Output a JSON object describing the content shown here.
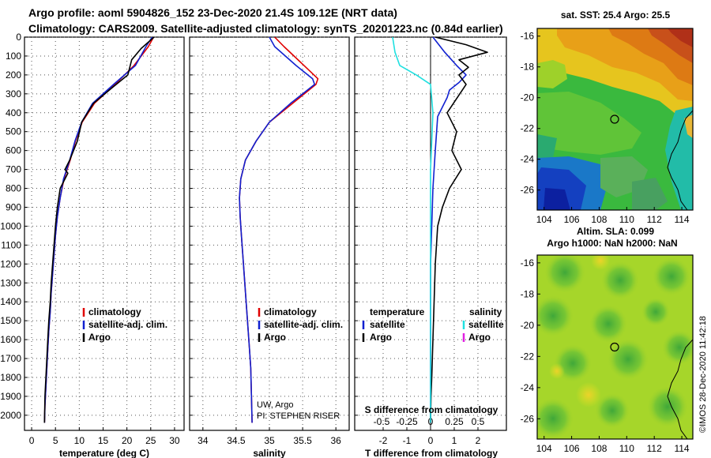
{
  "header": {
    "line1": "Argo profile: aoml 5904826_152 23-Dec-2020 21.4S 109.12E (NRT data)",
    "line2": "Climatology: CARS2009. Satellite-adjusted climatology: synTS_20201223.nc (0.84d earlier)"
  },
  "colors": {
    "climatology": "#e00000",
    "satellite": "#1020d0",
    "argo": "#000000",
    "satellite_salinity": "#20e0e0",
    "argo_salinity": "#e020e0"
  },
  "chart_data": [
    {
      "type": "line",
      "name": "temperature-profile",
      "xlabel": "temperature (deg C)",
      "ylabel": "",
      "xlim": [
        -1.5,
        32
      ],
      "ylim": [
        2080,
        0
      ],
      "xticks": [
        0,
        5,
        10,
        15,
        20,
        25,
        30
      ],
      "xticklabels": [
        "0",
        "5",
        "10",
        "15",
        "20",
        "25",
        "30"
      ],
      "yticks": [
        0,
        100,
        200,
        300,
        400,
        500,
        600,
        700,
        800,
        900,
        1000,
        1100,
        1200,
        1300,
        1400,
        1500,
        1600,
        1700,
        1800,
        1900,
        2000
      ],
      "yticklabels": [
        "0",
        "100",
        "200",
        "300",
        "400",
        "500",
        "600",
        "700",
        "800",
        "900",
        "1000",
        "1100",
        "1200",
        "1300",
        "1400",
        "1500",
        "1600",
        "1700",
        "1800",
        "1900",
        "2000"
      ],
      "legend": [
        "climatology",
        "satellite-adj. clim.",
        "Argo"
      ],
      "series": [
        {
          "name": "climatology",
          "color": "#e00000",
          "x": [
            25.6,
            24.5,
            21.5,
            17.5,
            13.2,
            10.6,
            9.2,
            8.1,
            6.8,
            6.0,
            5.4,
            5.0,
            4.7,
            4.4,
            4.1,
            3.9,
            3.6,
            3.4,
            3.2,
            3.0,
            2.8,
            2.7
          ],
          "y": [
            0,
            50,
            150,
            250,
            350,
            450,
            550,
            650,
            750,
            850,
            950,
            1050,
            1150,
            1250,
            1350,
            1450,
            1550,
            1650,
            1750,
            1850,
            1950,
            2040
          ]
        },
        {
          "name": "satellite-adj. clim.",
          "color": "#1020d0",
          "x": [
            25.3,
            24.0,
            21.8,
            17.2,
            12.8,
            10.5,
            9.1,
            8.0,
            6.7,
            6.0,
            5.4,
            5.0,
            4.7,
            4.4,
            4.1,
            3.9,
            3.6,
            3.4,
            3.2,
            3.0,
            2.8,
            2.7
          ],
          "y": [
            0,
            50,
            150,
            250,
            350,
            450,
            550,
            650,
            750,
            850,
            950,
            1050,
            1150,
            1250,
            1350,
            1450,
            1550,
            1650,
            1750,
            1850,
            1950,
            2040
          ]
        },
        {
          "name": "Argo",
          "color": "#000000",
          "x": [
            25.7,
            23.0,
            21.0,
            20.2,
            16.8,
            13.0,
            10.5,
            9.6,
            8.0,
            7.0,
            7.6,
            6.0,
            5.4,
            5.0,
            4.7,
            4.4,
            4.1,
            3.9,
            3.6,
            3.4,
            3.2,
            3.0,
            2.8,
            2.7
          ],
          "y": [
            0,
            60,
            120,
            200,
            270,
            350,
            450,
            550,
            650,
            700,
            720,
            800,
            900,
            1000,
            1100,
            1200,
            1300,
            1400,
            1500,
            1600,
            1700,
            1800,
            1900,
            2040
          ]
        }
      ]
    },
    {
      "type": "line",
      "name": "salinity-profile",
      "xlabel": "salinity",
      "xlim": [
        33.8,
        36.2
      ],
      "ylim": [
        2080,
        0
      ],
      "xticks": [
        34,
        34.5,
        35,
        35.5,
        36
      ],
      "xticklabels": [
        "34",
        "34.5",
        "35",
        "35.5",
        "36"
      ],
      "legend": [
        "climatology",
        "satellite-adj. clim.",
        "Argo"
      ],
      "annotation": [
        "UW, Argo",
        "PI: STEPHEN RISER"
      ],
      "series": [
        {
          "name": "climatology",
          "color": "#e00000",
          "x": [
            35.08,
            35.22,
            35.52,
            35.73,
            35.7,
            35.35,
            35.0,
            34.8,
            34.64,
            34.57,
            34.55,
            34.56,
            34.58,
            34.6,
            34.62,
            34.64,
            34.66,
            34.68,
            34.7,
            34.72,
            34.73,
            34.74
          ],
          "y": [
            0,
            50,
            150,
            220,
            250,
            350,
            450,
            550,
            650,
            750,
            850,
            950,
            1050,
            1150,
            1250,
            1350,
            1450,
            1550,
            1650,
            1750,
            1900,
            2040
          ]
        },
        {
          "name": "satellite-adj. clim.",
          "color": "#1020d0",
          "x": [
            35.0,
            35.08,
            35.4,
            35.65,
            35.68,
            35.32,
            35.0,
            34.8,
            34.64,
            34.57,
            34.55,
            34.56,
            34.58,
            34.6,
            34.62,
            34.64,
            34.66,
            34.68,
            34.7,
            34.72,
            34.73,
            34.74
          ],
          "y": [
            0,
            50,
            150,
            220,
            250,
            350,
            450,
            550,
            650,
            750,
            850,
            950,
            1050,
            1150,
            1250,
            1350,
            1450,
            1550,
            1650,
            1750,
            1900,
            2040
          ]
        }
      ]
    },
    {
      "type": "line",
      "name": "difference-profile",
      "xlabel": "T difference from climatology",
      "top_xlabel": "S difference from climatology",
      "xlim": [
        -3.2,
        3.2
      ],
      "ylim": [
        2080,
        0
      ],
      "xticks": [
        -2,
        -1,
        0,
        1,
        2
      ],
      "xticklabels": [
        "-2",
        "-1",
        "0",
        "1",
        "2"
      ],
      "top_xticks": [
        -2,
        -1,
        0,
        1,
        2
      ],
      "top_xticklabels": [
        "-0.5",
        "-0.25",
        "0",
        "0.25",
        "0.5"
      ],
      "legend_title_left": "temperature",
      "legend_title_right": "salinity",
      "legend_left": [
        "satellite",
        "Argo"
      ],
      "legend_right": [
        "satellite",
        "Argo"
      ],
      "series": [
        {
          "name": "T satellite",
          "color": "#1020d0",
          "x": [
            0.1,
            0.6,
            1.1,
            1.5,
            1.2,
            0.8,
            0.7,
            0.3,
            0.2,
            0.1,
            0.05,
            0.0,
            0.0,
            0.0,
            0.0,
            0.0
          ],
          "y": [
            0,
            80,
            150,
            200,
            240,
            280,
            320,
            420,
            600,
            800,
            1000,
            1200,
            1400,
            1600,
            1800,
            2040
          ]
        },
        {
          "name": "T Argo",
          "color": "#000000",
          "x": [
            0.2,
            1.5,
            2.4,
            1.2,
            1.6,
            1.2,
            1.5,
            0.7,
            1.1,
            0.9,
            1.3,
            0.8,
            0.5,
            0.3,
            0.2,
            0.15,
            0.1,
            0.05,
            0.02,
            0.0
          ],
          "y": [
            0,
            40,
            80,
            120,
            160,
            200,
            250,
            400,
            500,
            600,
            700,
            800,
            900,
            1000,
            1200,
            1400,
            1600,
            1800,
            1900,
            2040
          ]
        },
        {
          "name": "S satellite",
          "color": "#20e0e0",
          "x": [
            -1.6,
            -1.5,
            -1.3,
            -0.6,
            0.0,
            0.1,
            0.0,
            0.0,
            0.0,
            0.0,
            0.0
          ],
          "y": [
            0,
            80,
            150,
            200,
            250,
            400,
            700,
            1000,
            1400,
            1800,
            2040
          ]
        }
      ]
    }
  ],
  "maps": [
    {
      "name": "sst-map",
      "title": "sat. SST: 25.4 Argo: 25.5",
      "xticklabels": [
        "104",
        "106",
        "108",
        "110",
        "112",
        "114"
      ],
      "yticklabels": [
        "-16",
        "-18",
        "-20",
        "-22",
        "-24",
        "-26"
      ],
      "xlim": [
        103.5,
        114.8
      ],
      "ylim": [
        -27.3,
        -15.5
      ],
      "marker": [
        109.12,
        -21.4
      ]
    },
    {
      "name": "sla-map",
      "title_line1": "Altim. SLA: 0.099",
      "title_line2": "Argo h1000: NaN h2000: NaN",
      "xticklabels": [
        "104",
        "106",
        "108",
        "110",
        "112",
        "114"
      ],
      "yticklabels": [
        "-16",
        "-18",
        "-20",
        "-22",
        "-24",
        "-26"
      ],
      "xlim": [
        103.5,
        114.8
      ],
      "ylim": [
        -27.3,
        -15.5
      ],
      "marker": [
        109.12,
        -21.4
      ]
    }
  ],
  "watermark": "©IMOS 28-Dec-2020 11:42:18"
}
